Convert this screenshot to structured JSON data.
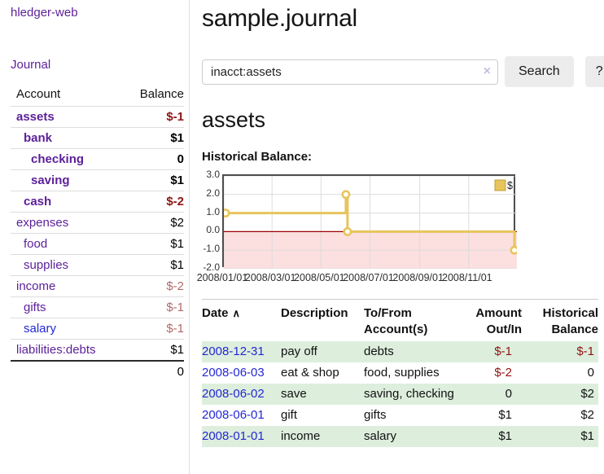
{
  "colors": {
    "purple": "#5b1f99",
    "blue": "#2428d2",
    "neg_strong": "#8f1414",
    "neg_muted": "#b26a6a",
    "row_green": "#ddeedd",
    "btn_bg": "#ececec",
    "border_gray": "#ddd",
    "clear_icon": "#c9bede",
    "chart_line": "#e7c45c",
    "chart_marker_fill": "#fffdf0",
    "chart_fill_negative": "#fcdfdf",
    "chart_zero_line": "#990000",
    "chart_grid": "#dcdcdc",
    "chart_border": "#4d4d4d",
    "legend_border": "#bf9f3a"
  },
  "sidebar": {
    "app_title": "hledger-web",
    "nav_journal": "Journal",
    "accounts_table": {
      "col_account": "Account",
      "col_balance": "Balance",
      "rows": [
        {
          "name": "assets",
          "balance": "$-1",
          "indent": 0,
          "bold": true,
          "link_color": "purple",
          "balance_color": "negative"
        },
        {
          "name": "bank",
          "balance": "$1",
          "indent": 1,
          "bold": true,
          "link_color": "purple",
          "balance_color": "normal"
        },
        {
          "name": "checking",
          "balance": "0",
          "indent": 2,
          "bold": true,
          "link_color": "purple",
          "balance_color": "normal"
        },
        {
          "name": "saving",
          "balance": "$1",
          "indent": 2,
          "bold": true,
          "link_color": "purple",
          "balance_color": "normal"
        },
        {
          "name": "cash",
          "balance": "$-2",
          "indent": 1,
          "bold": true,
          "link_color": "purple",
          "balance_color": "negative"
        },
        {
          "name": "expenses",
          "balance": "$2",
          "indent": 0,
          "bold": false,
          "link_color": "purple",
          "balance_color": "normal"
        },
        {
          "name": "food",
          "balance": "$1",
          "indent": 1,
          "bold": false,
          "link_color": "purple",
          "balance_color": "normal"
        },
        {
          "name": "supplies",
          "balance": "$1",
          "indent": 1,
          "bold": false,
          "link_color": "purple",
          "balance_color": "normal"
        },
        {
          "name": "income",
          "balance": "$-2",
          "indent": 0,
          "bold": false,
          "link_color": "purple",
          "balance_color": "negative-muted"
        },
        {
          "name": "gifts",
          "balance": "$-1",
          "indent": 1,
          "bold": false,
          "link_color": "purple",
          "balance_color": "negative-muted"
        },
        {
          "name": "salary",
          "balance": "$-1",
          "indent": 1,
          "bold": false,
          "link_color": "blue",
          "balance_color": "negative-muted"
        },
        {
          "name": "liabilities:debts",
          "balance": "$1",
          "indent": 0,
          "bold": false,
          "link_color": "purple",
          "balance_color": "normal"
        }
      ],
      "total": "0"
    }
  },
  "main": {
    "title": "sample.journal",
    "search": {
      "value": "inacct:assets",
      "clear_icon": "×",
      "search_button": "Search",
      "help_button": "?"
    },
    "account_heading": "assets",
    "section_label": "Historical Balance:"
  },
  "chart_data": {
    "type": "line",
    "step": true,
    "title": "Historical Balance:",
    "legend": [
      {
        "label": "$"
      }
    ],
    "legend_position": "top-right",
    "x_range": [
      "2008-01-01",
      "2008-12-31"
    ],
    "x_ticks": [
      "2008/01/01",
      "2008/03/01",
      "2008/05/01",
      "2008/07/01",
      "2008/09/01",
      "2008/11/01"
    ],
    "y_range": [
      -2,
      3
    ],
    "y_ticks": [
      "3.0",
      "2.0",
      "1.0",
      "0.0",
      "-1.0",
      "-2.0"
    ],
    "grid": true,
    "negative_region_shaded": true,
    "series": [
      {
        "name": "$",
        "points": [
          [
            "2008-01-01",
            1
          ],
          [
            "2008-06-01",
            2
          ],
          [
            "2008-06-03",
            0
          ],
          [
            "2008-12-31",
            -1
          ]
        ]
      }
    ]
  },
  "register": {
    "headers": {
      "date": "Date",
      "sort_indicator": "∧",
      "description": "Description",
      "accounts": "To/From Account(s)",
      "amount": "Amount Out/In",
      "balance": "Historical Balance"
    },
    "rows": [
      {
        "date": "2008-12-31",
        "description": "pay off",
        "accounts": "debts",
        "amount": "$-1",
        "amount_negative": true,
        "balance": "$-1",
        "balance_negative": true
      },
      {
        "date": "2008-06-03",
        "description": "eat & shop",
        "accounts": "food, supplies",
        "amount": "$-2",
        "amount_negative": true,
        "balance": "0",
        "balance_negative": false
      },
      {
        "date": "2008-06-02",
        "description": "save",
        "accounts": "saving, checking",
        "amount": "0",
        "amount_negative": false,
        "balance": "$2",
        "balance_negative": false
      },
      {
        "date": "2008-06-01",
        "description": "gift",
        "accounts": "gifts",
        "amount": "$1",
        "amount_negative": false,
        "balance": "$2",
        "balance_negative": false
      },
      {
        "date": "2008-01-01",
        "description": "income",
        "accounts": "salary",
        "amount": "$1",
        "amount_negative": false,
        "balance": "$1",
        "balance_negative": false
      }
    ]
  }
}
